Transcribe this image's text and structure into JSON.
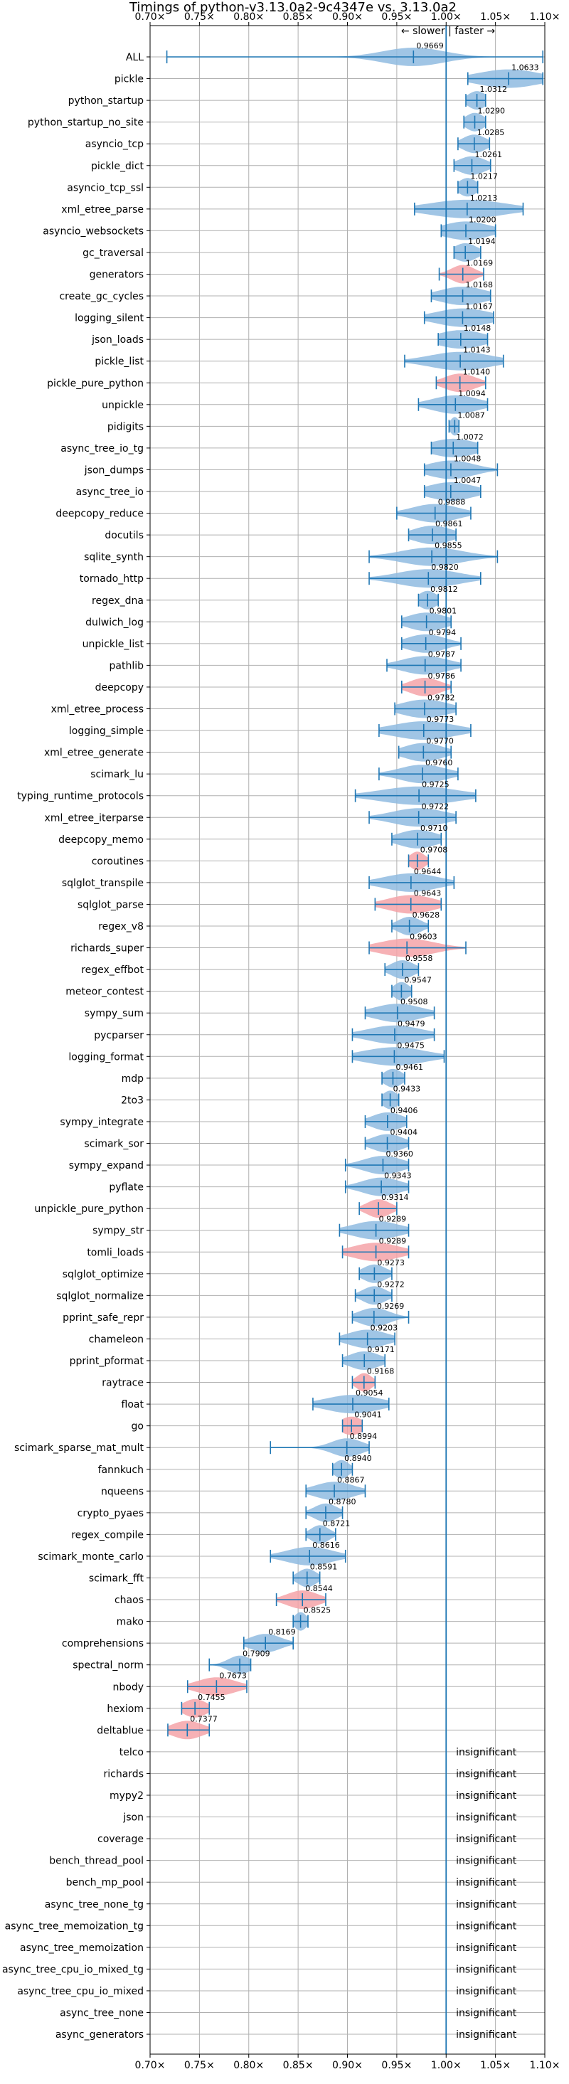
{
  "chart_data": {
    "type": "violin",
    "title": "Timings of python-v3.13.0a2-9c4347e vs. 3.13.0a2",
    "direction_label": "← slower | faster →",
    "xlim": [
      0.7,
      1.1
    ],
    "xticks": [
      0.7,
      0.75,
      0.8,
      0.85,
      0.9,
      0.95,
      1.0,
      1.05,
      1.1
    ],
    "xtick_labels": [
      "0.70×",
      "0.75×",
      "0.80×",
      "0.85×",
      "0.90×",
      "0.95×",
      "1.00×",
      "1.05×",
      "1.10×"
    ],
    "reference_line": 1.0,
    "grid": true,
    "colors": {
      "neutral": "#8fbbe0",
      "slower": "#f4a3a8",
      "line": "#1f77b4",
      "grid": "#b0b0b0"
    },
    "insignificant_text": "insignificant",
    "benchmarks": [
      {
        "name": "ALL",
        "value": 0.9669,
        "label": "0.9669",
        "min": 0.717,
        "max": 1.098,
        "spread": 0.04,
        "slower": false
      },
      {
        "name": "pickle",
        "value": 1.0633,
        "label": "1.0633",
        "min": 1.022,
        "max": 1.098,
        "spread": 0.04,
        "slower": false
      },
      {
        "name": "python_startup",
        "value": 1.0312,
        "label": "1.0312",
        "min": 1.02,
        "max": 1.04,
        "spread": 0.012,
        "slower": false
      },
      {
        "name": "python_startup_no_site",
        "value": 1.029,
        "label": "1.0290",
        "min": 1.018,
        "max": 1.04,
        "spread": 0.012,
        "slower": false
      },
      {
        "name": "asyncio_tcp",
        "value": 1.0285,
        "label": "1.0285",
        "min": 1.012,
        "max": 1.044,
        "spread": 0.015,
        "slower": false
      },
      {
        "name": "pickle_dict",
        "value": 1.0261,
        "label": "1.0261",
        "min": 1.008,
        "max": 1.045,
        "spread": 0.018,
        "slower": false
      },
      {
        "name": "asyncio_tcp_ssl",
        "value": 1.0217,
        "label": "1.0217",
        "min": 1.012,
        "max": 1.032,
        "spread": 0.012,
        "slower": false
      },
      {
        "name": "xml_etree_parse",
        "value": 1.0213,
        "label": "1.0213",
        "min": 0.968,
        "max": 1.078,
        "spread": 0.05,
        "slower": false
      },
      {
        "name": "asyncio_websockets",
        "value": 1.02,
        "label": "1.0200",
        "min": 0.995,
        "max": 1.05,
        "spread": 0.03,
        "slower": false
      },
      {
        "name": "gc_traversal",
        "value": 1.0194,
        "label": "1.0194",
        "min": 1.008,
        "max": 1.035,
        "spread": 0.015,
        "slower": false
      },
      {
        "name": "generators",
        "value": 1.0169,
        "label": "1.0169",
        "min": 0.993,
        "max": 1.038,
        "spread": 0.015,
        "slower": true
      },
      {
        "name": "create_gc_cycles",
        "value": 1.0168,
        "label": "1.0168",
        "min": 0.985,
        "max": 1.045,
        "spread": 0.03,
        "slower": false
      },
      {
        "name": "logging_silent",
        "value": 1.0167,
        "label": "1.0167",
        "min": 0.978,
        "max": 1.048,
        "spread": 0.035,
        "slower": false
      },
      {
        "name": "json_loads",
        "value": 1.0148,
        "label": "1.0148",
        "min": 0.992,
        "max": 1.042,
        "spread": 0.03,
        "slower": false
      },
      {
        "name": "pickle_list",
        "value": 1.0143,
        "label": "1.0143",
        "min": 0.958,
        "max": 1.058,
        "spread": 0.04,
        "slower": false
      },
      {
        "name": "pickle_pure_python",
        "value": 1.014,
        "label": "1.0140",
        "min": 0.99,
        "max": 1.04,
        "spread": 0.02,
        "slower": true
      },
      {
        "name": "unpickle",
        "value": 1.0094,
        "label": "1.0094",
        "min": 0.972,
        "max": 1.042,
        "spread": 0.03,
        "slower": false
      },
      {
        "name": "pidigits",
        "value": 1.0087,
        "label": "1.0087",
        "min": 1.003,
        "max": 1.013,
        "spread": 0.006,
        "slower": false
      },
      {
        "name": "async_tree_io_tg",
        "value": 1.0072,
        "label": "1.0072",
        "min": 0.985,
        "max": 1.032,
        "spread": 0.03,
        "slower": false
      },
      {
        "name": "json_dumps",
        "value": 1.0048,
        "label": "1.0048",
        "min": 0.978,
        "max": 1.052,
        "spread": 0.03,
        "slower": false
      },
      {
        "name": "async_tree_io",
        "value": 1.0047,
        "label": "1.0047",
        "min": 0.978,
        "max": 1.035,
        "spread": 0.03,
        "slower": false
      },
      {
        "name": "deepcopy_reduce",
        "value": 0.9888,
        "label": "0.9888",
        "min": 0.95,
        "max": 1.025,
        "spread": 0.03,
        "slower": false
      },
      {
        "name": "docutils",
        "value": 0.9861,
        "label": "0.9861",
        "min": 0.962,
        "max": 1.01,
        "spread": 0.025,
        "slower": false
      },
      {
        "name": "sqlite_synth",
        "value": 0.9855,
        "label": "0.9855",
        "min": 0.922,
        "max": 1.052,
        "spread": 0.04,
        "slower": false
      },
      {
        "name": "tornado_http",
        "value": 0.982,
        "label": "0.9820",
        "min": 0.922,
        "max": 1.035,
        "spread": 0.04,
        "slower": false
      },
      {
        "name": "regex_dna",
        "value": 0.9812,
        "label": "0.9812",
        "min": 0.972,
        "max": 0.992,
        "spread": 0.012,
        "slower": false
      },
      {
        "name": "dulwich_log",
        "value": 0.9801,
        "label": "0.9801",
        "min": 0.955,
        "max": 1.005,
        "spread": 0.025,
        "slower": false
      },
      {
        "name": "unpickle_list",
        "value": 0.9794,
        "label": "0.9794",
        "min": 0.955,
        "max": 1.015,
        "spread": 0.025,
        "slower": false
      },
      {
        "name": "pathlib",
        "value": 0.9787,
        "label": "0.9787",
        "min": 0.94,
        "max": 1.015,
        "spread": 0.03,
        "slower": false
      },
      {
        "name": "deepcopy",
        "value": 0.9786,
        "label": "0.9786",
        "min": 0.955,
        "max": 1.005,
        "spread": 0.02,
        "slower": true
      },
      {
        "name": "xml_etree_process",
        "value": 0.9782,
        "label": "0.9782",
        "min": 0.948,
        "max": 1.01,
        "spread": 0.03,
        "slower": false
      },
      {
        "name": "logging_simple",
        "value": 0.9773,
        "label": "0.9773",
        "min": 0.932,
        "max": 1.025,
        "spread": 0.04,
        "slower": false
      },
      {
        "name": "xml_etree_generate",
        "value": 0.977,
        "label": "0.9770",
        "min": 0.952,
        "max": 1.005,
        "spread": 0.025,
        "slower": false
      },
      {
        "name": "scimark_lu",
        "value": 0.976,
        "label": "0.9760",
        "min": 0.932,
        "max": 1.012,
        "spread": 0.03,
        "slower": false
      },
      {
        "name": "typing_runtime_protocols",
        "value": 0.9725,
        "label": "0.9725",
        "min": 0.908,
        "max": 1.03,
        "spread": 0.05,
        "slower": false
      },
      {
        "name": "xml_etree_iterparse",
        "value": 0.9722,
        "label": "0.9722",
        "min": 0.922,
        "max": 1.01,
        "spread": 0.035,
        "slower": false
      },
      {
        "name": "deepcopy_memo",
        "value": 0.971,
        "label": "0.9710",
        "min": 0.945,
        "max": 0.995,
        "spread": 0.025,
        "slower": false
      },
      {
        "name": "coroutines",
        "value": 0.9708,
        "label": "0.9708",
        "min": 0.962,
        "max": 0.982,
        "spread": 0.01,
        "slower": true
      },
      {
        "name": "sqlglot_transpile",
        "value": 0.9644,
        "label": "0.9644",
        "min": 0.922,
        "max": 1.008,
        "spread": 0.035,
        "slower": false
      },
      {
        "name": "sqlglot_parse",
        "value": 0.9643,
        "label": "0.9643",
        "min": 0.928,
        "max": 0.995,
        "spread": 0.03,
        "slower": true
      },
      {
        "name": "regex_v8",
        "value": 0.9628,
        "label": "0.9628",
        "min": 0.945,
        "max": 0.982,
        "spread": 0.015,
        "slower": false
      },
      {
        "name": "richards_super",
        "value": 0.9603,
        "label": "0.9603",
        "min": 0.922,
        "max": 1.02,
        "spread": 0.035,
        "slower": true
      },
      {
        "name": "regex_effbot",
        "value": 0.9558,
        "label": "0.9558",
        "min": 0.938,
        "max": 0.972,
        "spread": 0.015,
        "slower": false
      },
      {
        "name": "meteor_contest",
        "value": 0.9547,
        "label": "0.9547",
        "min": 0.945,
        "max": 0.965,
        "spread": 0.01,
        "slower": false
      },
      {
        "name": "sympy_sum",
        "value": 0.9508,
        "label": "0.9508",
        "min": 0.918,
        "max": 0.988,
        "spread": 0.03,
        "slower": false
      },
      {
        "name": "pycparser",
        "value": 0.9479,
        "label": "0.9479",
        "min": 0.905,
        "max": 0.988,
        "spread": 0.035,
        "slower": false
      },
      {
        "name": "logging_format",
        "value": 0.9475,
        "label": "0.9475",
        "min": 0.905,
        "max": 0.998,
        "spread": 0.04,
        "slower": false
      },
      {
        "name": "mdp",
        "value": 0.9461,
        "label": "0.9461",
        "min": 0.935,
        "max": 0.958,
        "spread": 0.012,
        "slower": false
      },
      {
        "name": "2to3",
        "value": 0.9433,
        "label": "0.9433",
        "min": 0.935,
        "max": 0.952,
        "spread": 0.01,
        "slower": false
      },
      {
        "name": "sympy_integrate",
        "value": 0.9406,
        "label": "0.9406",
        "min": 0.918,
        "max": 0.96,
        "spread": 0.02,
        "slower": false
      },
      {
        "name": "scimark_sor",
        "value": 0.9404,
        "label": "0.9404",
        "min": 0.918,
        "max": 0.962,
        "spread": 0.02,
        "slower": false
      },
      {
        "name": "sympy_expand",
        "value": 0.936,
        "label": "0.9360",
        "min": 0.898,
        "max": 0.962,
        "spread": 0.025,
        "slower": false
      },
      {
        "name": "pyflate",
        "value": 0.9343,
        "label": "0.9343",
        "min": 0.898,
        "max": 0.962,
        "spread": 0.025,
        "slower": false
      },
      {
        "name": "unpickle_pure_python",
        "value": 0.9314,
        "label": "0.9314",
        "min": 0.912,
        "max": 0.95,
        "spread": 0.015,
        "slower": true
      },
      {
        "name": "sympy_str",
        "value": 0.9289,
        "label": "0.9289",
        "min": 0.892,
        "max": 0.962,
        "spread": 0.03,
        "slower": false
      },
      {
        "name": "tomli_loads",
        "value": 0.9289,
        "label": "0.9289",
        "min": 0.895,
        "max": 0.962,
        "spread": 0.03,
        "slower": true
      },
      {
        "name": "sqlglot_optimize",
        "value": 0.9273,
        "label": "0.9273",
        "min": 0.912,
        "max": 0.945,
        "spread": 0.015,
        "slower": false
      },
      {
        "name": "sqlglot_normalize",
        "value": 0.9272,
        "label": "0.9272",
        "min": 0.908,
        "max": 0.945,
        "spread": 0.015,
        "slower": false
      },
      {
        "name": "pprint_safe_repr",
        "value": 0.9269,
        "label": "0.9269",
        "min": 0.905,
        "max": 0.962,
        "spread": 0.02,
        "slower": false
      },
      {
        "name": "chameleon",
        "value": 0.9203,
        "label": "0.9203",
        "min": 0.892,
        "max": 0.948,
        "spread": 0.025,
        "slower": false
      },
      {
        "name": "pprint_pformat",
        "value": 0.9171,
        "label": "0.9171",
        "min": 0.895,
        "max": 0.938,
        "spread": 0.02,
        "slower": false
      },
      {
        "name": "raytrace",
        "value": 0.9168,
        "label": "0.9168",
        "min": 0.905,
        "max": 0.928,
        "spread": 0.01,
        "slower": true
      },
      {
        "name": "float",
        "value": 0.9054,
        "label": "0.9054",
        "min": 0.865,
        "max": 0.942,
        "spread": 0.035,
        "slower": false
      },
      {
        "name": "go",
        "value": 0.9041,
        "label": "0.9041",
        "min": 0.895,
        "max": 0.915,
        "spread": 0.015,
        "slower": true
      },
      {
        "name": "scimark_sparse_mat_mult",
        "value": 0.8994,
        "label": "0.8994",
        "min": 0.822,
        "max": 0.922,
        "spread": 0.02,
        "slower": false
      },
      {
        "name": "fannkuch",
        "value": 0.894,
        "label": "0.8940",
        "min": 0.885,
        "max": 0.905,
        "spread": 0.01,
        "slower": false
      },
      {
        "name": "nqueens",
        "value": 0.8867,
        "label": "0.8867",
        "min": 0.858,
        "max": 0.918,
        "spread": 0.025,
        "slower": false
      },
      {
        "name": "crypto_pyaes",
        "value": 0.878,
        "label": "0.8780",
        "min": 0.858,
        "max": 0.895,
        "spread": 0.015,
        "slower": false
      },
      {
        "name": "regex_compile",
        "value": 0.8721,
        "label": "0.8721",
        "min": 0.858,
        "max": 0.888,
        "spread": 0.012,
        "slower": false
      },
      {
        "name": "scimark_monte_carlo",
        "value": 0.8616,
        "label": "0.8616",
        "min": 0.822,
        "max": 0.898,
        "spread": 0.03,
        "slower": false
      },
      {
        "name": "scimark_fft",
        "value": 0.8591,
        "label": "0.8591",
        "min": 0.845,
        "max": 0.872,
        "spread": 0.012,
        "slower": false
      },
      {
        "name": "chaos",
        "value": 0.8544,
        "label": "0.8544",
        "min": 0.828,
        "max": 0.878,
        "spread": 0.02,
        "slower": true
      },
      {
        "name": "mako",
        "value": 0.8525,
        "label": "0.8525",
        "min": 0.845,
        "max": 0.86,
        "spread": 0.008,
        "slower": false
      },
      {
        "name": "comprehensions",
        "value": 0.8169,
        "label": "0.8169",
        "min": 0.795,
        "max": 0.845,
        "spread": 0.02,
        "slower": false
      },
      {
        "name": "spectral_norm",
        "value": 0.7909,
        "label": "0.7909",
        "min": 0.76,
        "max": 0.802,
        "spread": 0.015,
        "slower": false
      },
      {
        "name": "nbody",
        "value": 0.7673,
        "label": "0.7673",
        "min": 0.738,
        "max": 0.798,
        "spread": 0.025,
        "slower": true
      },
      {
        "name": "hexiom",
        "value": 0.7455,
        "label": "0.7455",
        "min": 0.732,
        "max": 0.76,
        "spread": 0.015,
        "slower": true
      },
      {
        "name": "deltablue",
        "value": 0.7377,
        "label": "0.7377",
        "min": 0.718,
        "max": 0.76,
        "spread": 0.02,
        "slower": true
      }
    ],
    "insignificant": [
      "telco",
      "richards",
      "mypy2",
      "json",
      "coverage",
      "bench_thread_pool",
      "bench_mp_pool",
      "async_tree_none_tg",
      "async_tree_memoization_tg",
      "async_tree_memoization",
      "async_tree_cpu_io_mixed_tg",
      "async_tree_cpu_io_mixed",
      "async_tree_none",
      "async_generators"
    ]
  }
}
